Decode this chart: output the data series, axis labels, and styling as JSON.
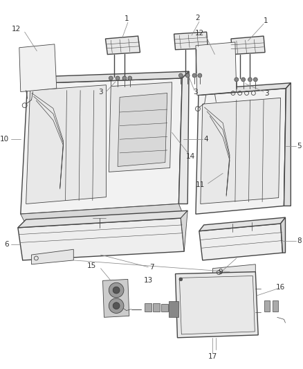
{
  "bg_color": "#ffffff",
  "line_color": "#444444",
  "label_color": "#333333",
  "fig_width": 4.38,
  "fig_height": 5.33,
  "note_fontsize": 7.5,
  "lw_main": 1.0,
  "lw_thin": 0.6,
  "lw_label": 0.55
}
